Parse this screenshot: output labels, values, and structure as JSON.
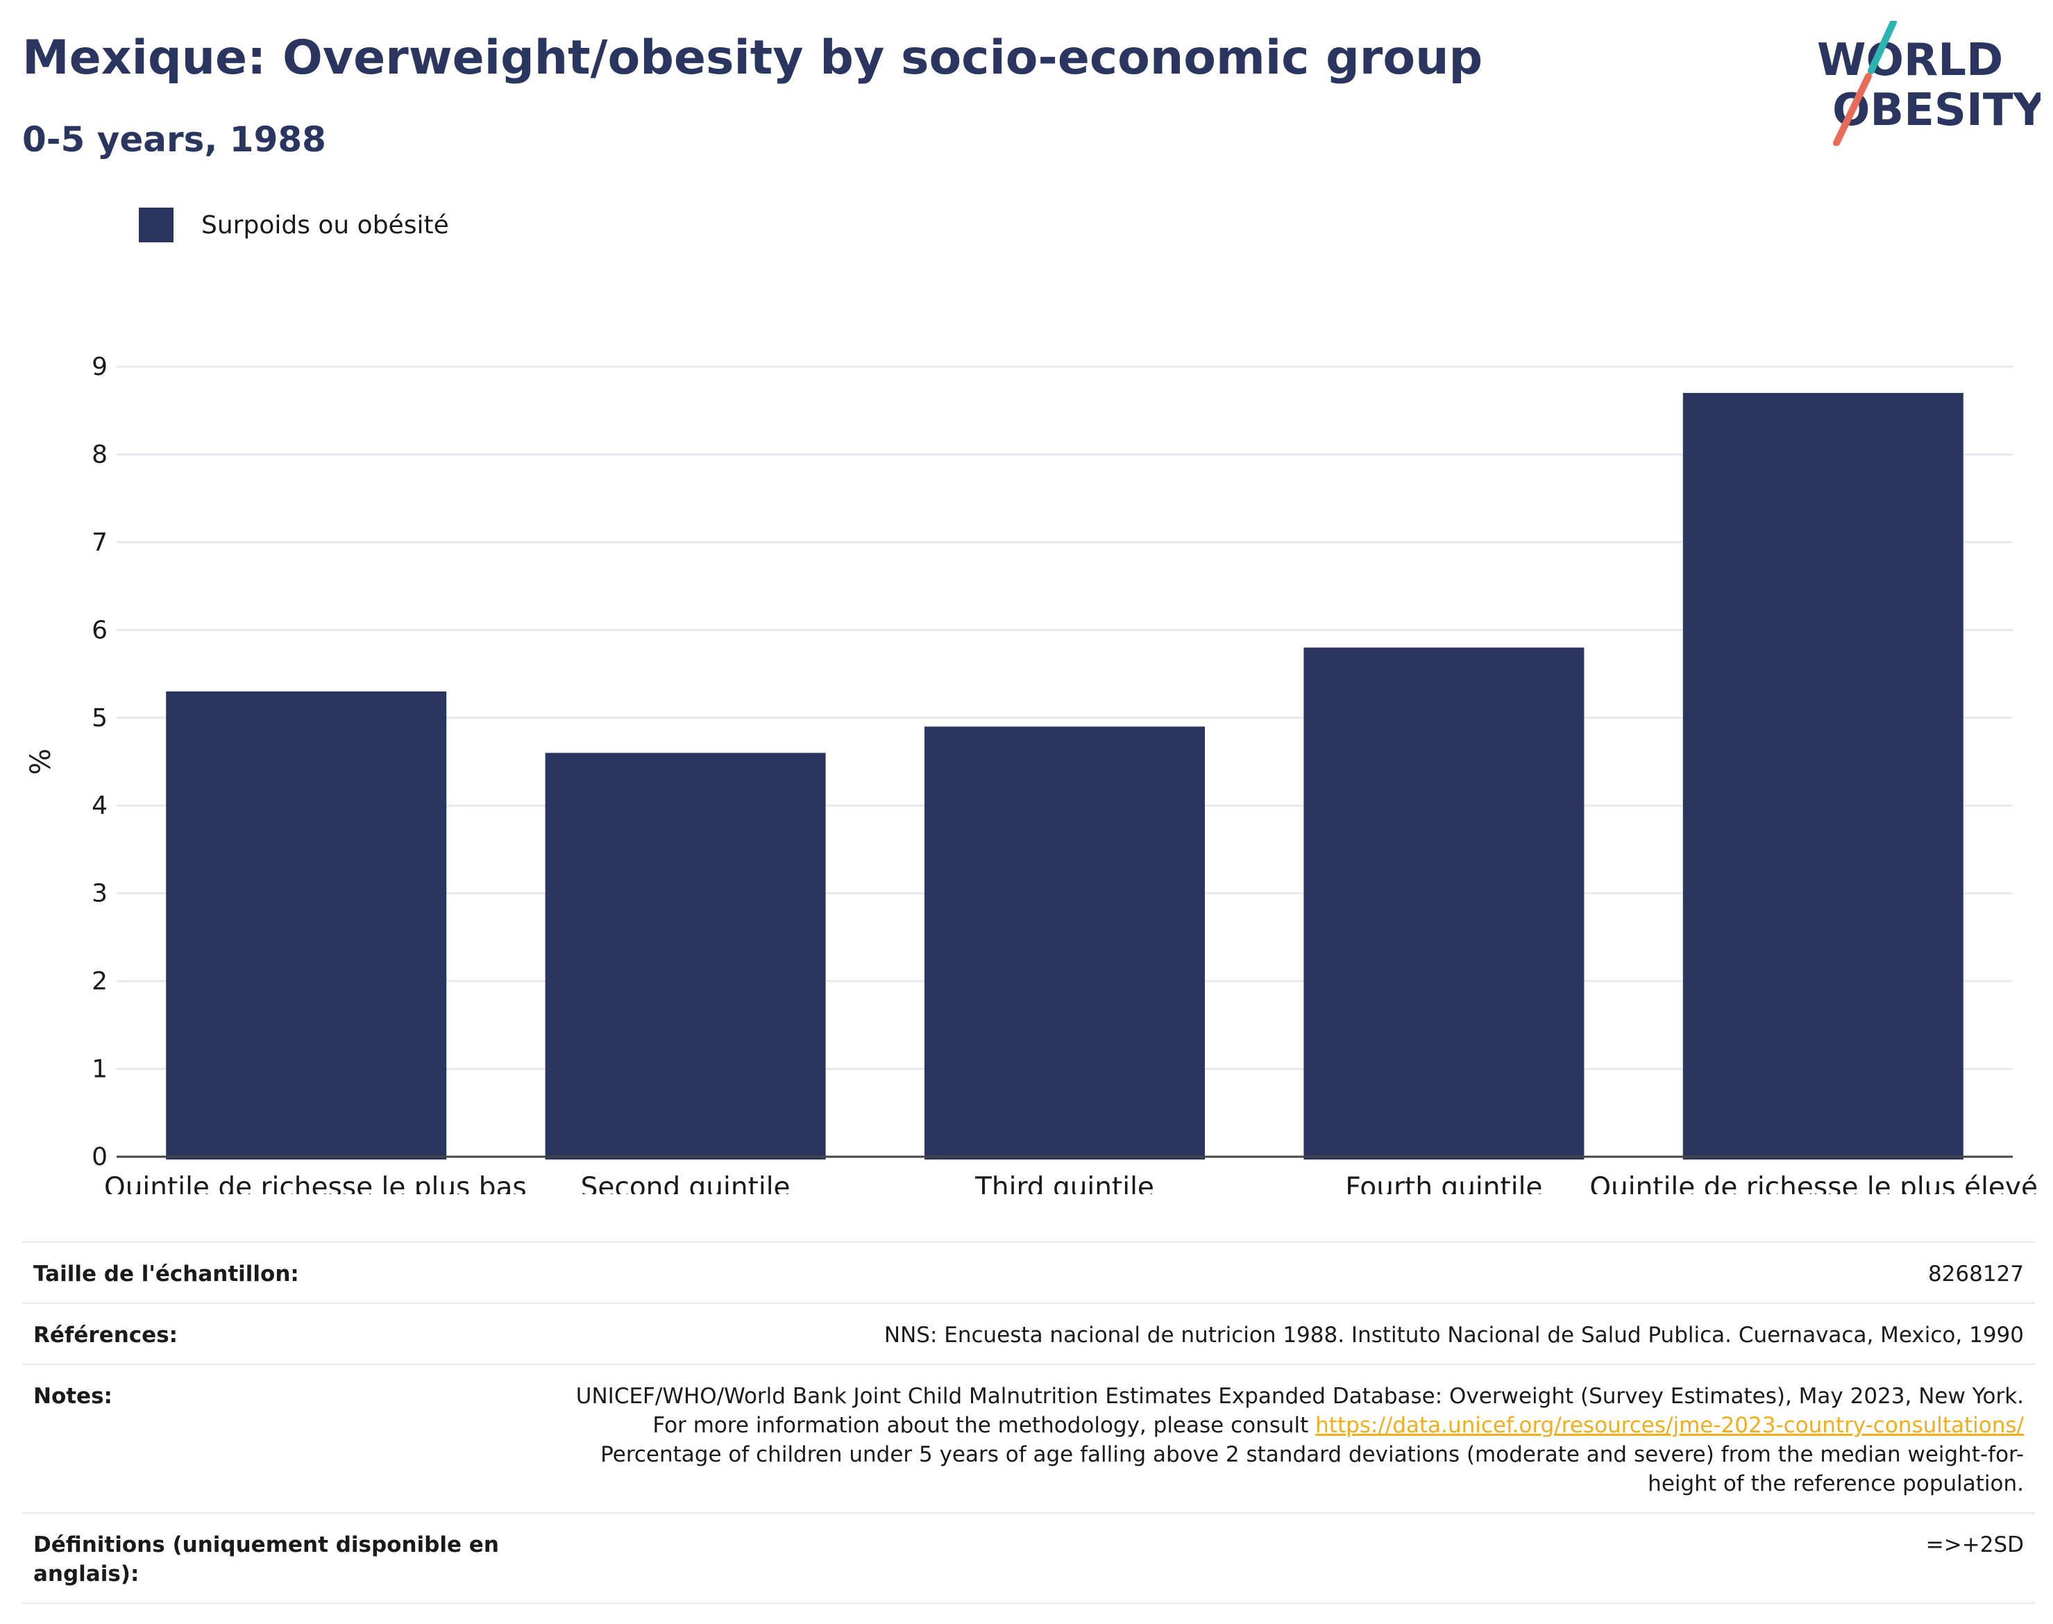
{
  "header": {
    "title": "Mexique: Overweight/obesity by socio-economic group",
    "subtitle": "0-5 years, 1988"
  },
  "logo": {
    "line1": "WORLD",
    "line2": "OBESITY"
  },
  "colors": {
    "bar": "#2b3660",
    "title": "#2b3660",
    "link": "#f0ae1c",
    "logo_slash_top": "#2cb5b0",
    "logo_slash_bottom": "#ea6a58"
  },
  "chart_data": {
    "type": "bar",
    "categories": [
      "Quintile de richesse le plus bas",
      "Second quintile",
      "Third quintile",
      "Fourth quintile",
      "Quintile de richesse le plus élevé"
    ],
    "series": [
      {
        "name": "Surpoids ou obésité",
        "values": [
          5.3,
          4.6,
          4.9,
          5.8,
          8.7
        ]
      }
    ],
    "ylabel": "%",
    "ylim": [
      0,
      9
    ],
    "yticks": [
      0,
      1,
      2,
      3,
      4,
      5,
      6,
      7,
      8,
      9
    ],
    "grid": true,
    "legend": "top-left"
  },
  "info": {
    "sample_label": "Taille de l'échantillon:",
    "sample_value": "8268127",
    "refs_label": "Références:",
    "refs_value": "NNS: Encuesta nacional de nutricion 1988. Instituto Nacional de Salud Publica. Cuernavaca, Mexico, 1990",
    "notes_label": "Notes:",
    "notes_text_1": "UNICEF/WHO/World Bank Joint Child Malnutrition Estimates Expanded Database: Overweight (Survey Estimates), May 2023, New York. For more information about the methodology, please consult ",
    "notes_link": "https://data.unicef.org/resources/jme-2023-country-consultations/",
    "notes_text_2": "Percentage of children under 5 years of age falling above 2 standard deviations (moderate and severe) from the median weight-for-height of the reference population.",
    "defs_label": "Définitions (uniquement disponible en anglais):",
    "defs_value": "=>+2SD"
  }
}
